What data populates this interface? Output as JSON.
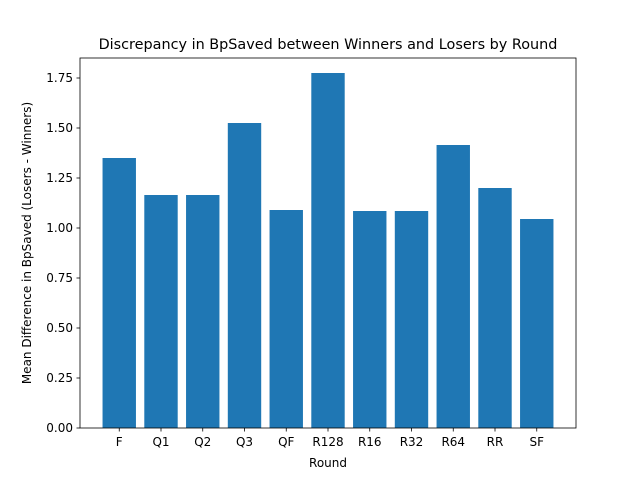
{
  "chart_data": {
    "type": "bar",
    "title": "Discrepancy in BpSaved between Winners and Losers by Round",
    "xlabel": "Round",
    "ylabel": "Mean Difference in BpSaved (Losers - Winners)",
    "categories": [
      "F",
      "Q1",
      "Q2",
      "Q3",
      "QF",
      "R128",
      "R16",
      "R32",
      "R64",
      "RR",
      "SF"
    ],
    "values": [
      1.35,
      1.165,
      1.165,
      1.525,
      1.09,
      1.775,
      1.085,
      1.085,
      1.415,
      1.2,
      1.045
    ],
    "ylim": [
      0,
      1.85
    ],
    "yticks": [
      "0.00",
      "0.25",
      "0.50",
      "0.75",
      "1.00",
      "1.25",
      "1.50",
      "1.75"
    ],
    "bar_color": "#1f77b4",
    "grid": false,
    "legend": "none"
  }
}
